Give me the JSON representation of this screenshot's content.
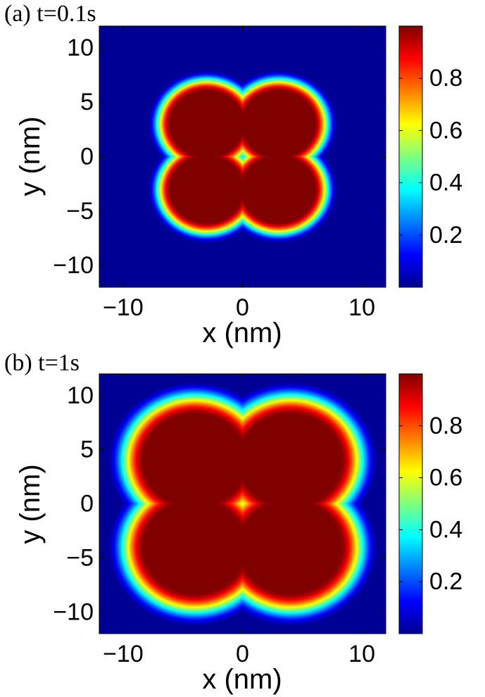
{
  "chart_data": [
    {
      "type": "heatmap",
      "panel_label": "(a) t=0.1s",
      "title": "",
      "xlabel": "x (nm)",
      "ylabel": "y (nm)",
      "xlim": [
        -12,
        12
      ],
      "ylim": [
        -12,
        12
      ],
      "xticks": [
        -10,
        0,
        10
      ],
      "yticks": [
        -10,
        -5,
        0,
        5,
        10
      ],
      "x_tick_labels": [
        "−10",
        "0",
        "10"
      ],
      "y_tick_labels": [
        "−10",
        "−5",
        "0",
        "5",
        "10"
      ],
      "colorbar": {
        "range": [
          0,
          1
        ],
        "ticks": [
          0.2,
          0.4,
          0.6,
          0.8
        ],
        "tick_labels": [
          "0.2",
          "0.4",
          "0.6",
          "0.8"
        ],
        "colormap": "jet"
      },
      "pattern": {
        "shape": "four-lobed cluster centered at origin",
        "lobe_centers": [
          [
            -3,
            3
          ],
          [
            3,
            3
          ],
          [
            -3,
            -3
          ],
          [
            3,
            -3
          ]
        ],
        "lobe_radius": 3.0,
        "plateau_value": 1.0,
        "edge_width": 2.0,
        "background_value": 0.02
      }
    },
    {
      "type": "heatmap",
      "panel_label": "(b) t=1s",
      "title": "",
      "xlabel": "x (nm)",
      "ylabel": "y (nm)",
      "xlim": [
        -12,
        12
      ],
      "ylim": [
        -12,
        12
      ],
      "xticks": [
        -10,
        0,
        10
      ],
      "yticks": [
        -10,
        -5,
        0,
        5,
        10
      ],
      "x_tick_labels": [
        "−10",
        "0",
        "10"
      ],
      "y_tick_labels": [
        "−10",
        "−5",
        "0",
        "5",
        "10"
      ],
      "colorbar": {
        "range": [
          0,
          1
        ],
        "ticks": [
          0.2,
          0.4,
          0.6,
          0.8
        ],
        "tick_labels": [
          "0.2",
          "0.4",
          "0.6",
          "0.8"
        ],
        "colormap": "jet"
      },
      "pattern": {
        "shape": "four-lobed cluster centered at origin",
        "lobe_centers": [
          [
            -4,
            4
          ],
          [
            4,
            4
          ],
          [
            -4,
            -4
          ],
          [
            4,
            -4
          ]
        ],
        "lobe_radius": 4.2,
        "plateau_value": 1.0,
        "edge_width": 3.2,
        "background_value": 0.02
      }
    }
  ]
}
